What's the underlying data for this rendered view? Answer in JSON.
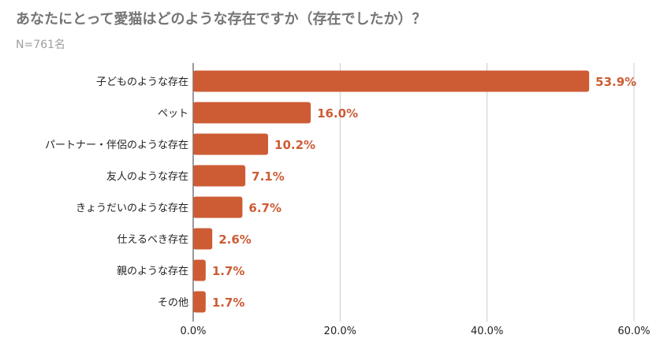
{
  "chart_data": {
    "type": "bar",
    "orientation": "horizontal",
    "title": "あなたにとって愛猫はどのような存在ですか（存在でしたか）？",
    "subtitle": "N=761名",
    "categories": [
      "子どものような存在",
      "ペット",
      "パートナー・伴侶のような存在",
      "友人のような存在",
      "きょうだいのような存在",
      "仕えるべき存在",
      "親のような存在",
      "その他"
    ],
    "values": [
      53.9,
      16.0,
      10.2,
      7.1,
      6.7,
      2.6,
      1.7,
      1.7
    ],
    "value_labels": [
      "53.9%",
      "16.0%",
      "10.2%",
      "7.1%",
      "6.7%",
      "2.6%",
      "1.7%",
      "1.7%"
    ],
    "xlim": [
      0,
      60
    ],
    "xticks": [
      0,
      20,
      40,
      60
    ],
    "xtick_labels": [
      "0.0%",
      "20.0%",
      "40.0%",
      "60.0%"
    ],
    "grid": true,
    "bar_color": "#cd5c35",
    "label_color": "#cd5c35",
    "grid_color": "#cccccc"
  }
}
